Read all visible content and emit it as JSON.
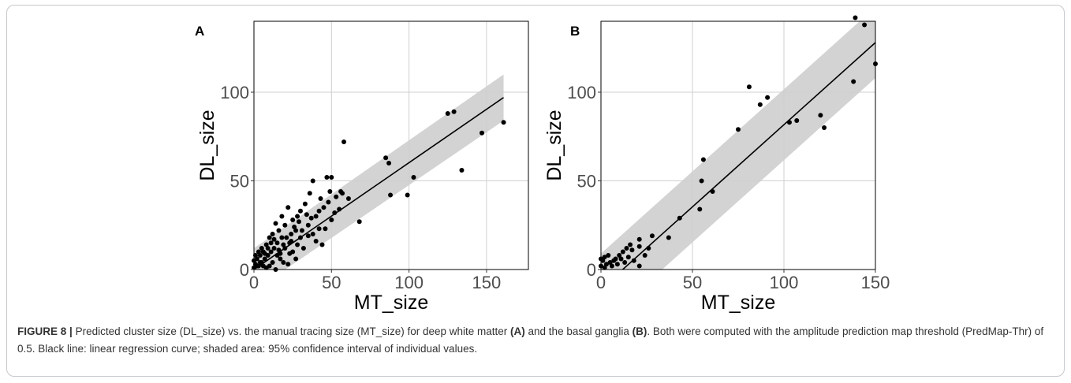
{
  "chart_data": [
    {
      "type": "scatter",
      "panel_label": "A",
      "xlabel": "MT_size",
      "ylabel": "DL_size",
      "xlim": [
        0,
        177
      ],
      "ylim": [
        0,
        140
      ],
      "xticks": [
        0,
        50,
        100,
        150
      ],
      "yticks": [
        0,
        50,
        100
      ],
      "grid": true,
      "color": "#000000",
      "x": [
        125,
        129,
        147,
        161,
        134,
        103,
        99,
        85,
        87,
        88,
        58,
        68,
        50,
        47,
        56,
        57,
        61,
        53,
        48,
        45,
        42,
        38,
        36,
        40,
        33,
        30,
        35,
        28,
        25,
        27,
        30,
        24,
        22,
        20,
        18,
        23,
        44,
        40,
        46,
        52,
        55,
        50,
        38,
        32,
        28,
        25,
        20,
        18,
        16,
        14,
        12,
        15,
        10,
        8,
        6,
        4,
        2,
        1,
        0,
        3,
        5,
        7,
        9,
        11,
        13,
        15,
        17,
        19,
        12,
        10,
        8,
        6,
        4,
        2,
        14,
        22,
        16,
        21,
        26,
        34,
        37,
        42,
        31,
        29,
        23,
        19,
        11,
        9,
        7,
        5,
        3,
        1,
        0,
        13,
        17,
        24,
        27,
        35,
        43,
        49
      ],
      "y": [
        88,
        89,
        77,
        83,
        56,
        52,
        42,
        63,
        60,
        42,
        72,
        27,
        52,
        52,
        44,
        43,
        40,
        41,
        38,
        35,
        33,
        50,
        43,
        30,
        37,
        33,
        25,
        30,
        28,
        22,
        18,
        20,
        35,
        25,
        30,
        15,
        14,
        16,
        23,
        32,
        34,
        28,
        20,
        12,
        14,
        10,
        12,
        18,
        22,
        26,
        20,
        15,
        18,
        14,
        10,
        8,
        6,
        3,
        1,
        2,
        4,
        6,
        8,
        10,
        12,
        8,
        6,
        4,
        4,
        2,
        1,
        2,
        4,
        2,
        0,
        3,
        11,
        18,
        24,
        31,
        29,
        23,
        22,
        27,
        9,
        14,
        15,
        12,
        9,
        12,
        10,
        8,
        5,
        17,
        9,
        16,
        6,
        19,
        40,
        44
      ],
      "fit": {
        "x": [
          0,
          161
        ],
        "y": [
          0,
          97
        ],
        "lower": [
          -12,
          84
        ],
        "upper": [
          12,
          110
        ],
        "color": "#000000",
        "band_color": "#d3d3d3"
      }
    },
    {
      "type": "scatter",
      "panel_label": "B",
      "xlabel": "MT_size",
      "ylabel": "DL_size",
      "xlim": [
        0,
        150
      ],
      "ylim": [
        0,
        140
      ],
      "xticks": [
        0,
        50,
        100,
        150
      ],
      "yticks": [
        0,
        50,
        100
      ],
      "grid": true,
      "color": "#000000",
      "x": [
        139,
        144,
        150,
        138,
        81,
        91,
        87,
        75,
        103,
        107,
        120,
        122,
        56,
        55,
        61,
        54,
        43,
        37,
        28,
        26,
        21,
        21,
        21,
        16,
        14,
        12,
        10,
        8,
        5,
        3,
        2,
        1,
        0,
        4,
        6,
        9,
        11,
        15,
        18,
        0,
        2,
        7,
        13,
        17,
        24
      ],
      "y": [
        142,
        138,
        116,
        106,
        103,
        97,
        93,
        79,
        83,
        84,
        87,
        80,
        62,
        50,
        44,
        34,
        29,
        18,
        19,
        12,
        17,
        13,
        2,
        14,
        12,
        10,
        8,
        6,
        4,
        3,
        7,
        5,
        2,
        8,
        2,
        3,
        6,
        7,
        5,
        6,
        1,
        5,
        4,
        11,
        8
      ],
      "fit": {
        "x": [
          0,
          150
        ],
        "y": [
          -11,
          128
        ],
        "lower": [
          -31,
          108
        ],
        "upper": [
          9,
          148
        ],
        "color": "#000000",
        "band_color": "#d3d3d3"
      }
    }
  ],
  "caption": {
    "label": "FIGURE 8 |",
    "parts": [
      "Predicted cluster size (DL_size) vs. the manual tracing size (MT_size) for deep white matter ",
      "(A)",
      " and the basal ganglia ",
      "(B)",
      ". Both were computed with the amplitude prediction map threshold (PredMap-Thr) of 0.5. Black line: linear regression curve; shaded area: 95% confidence interval of individual values."
    ]
  }
}
